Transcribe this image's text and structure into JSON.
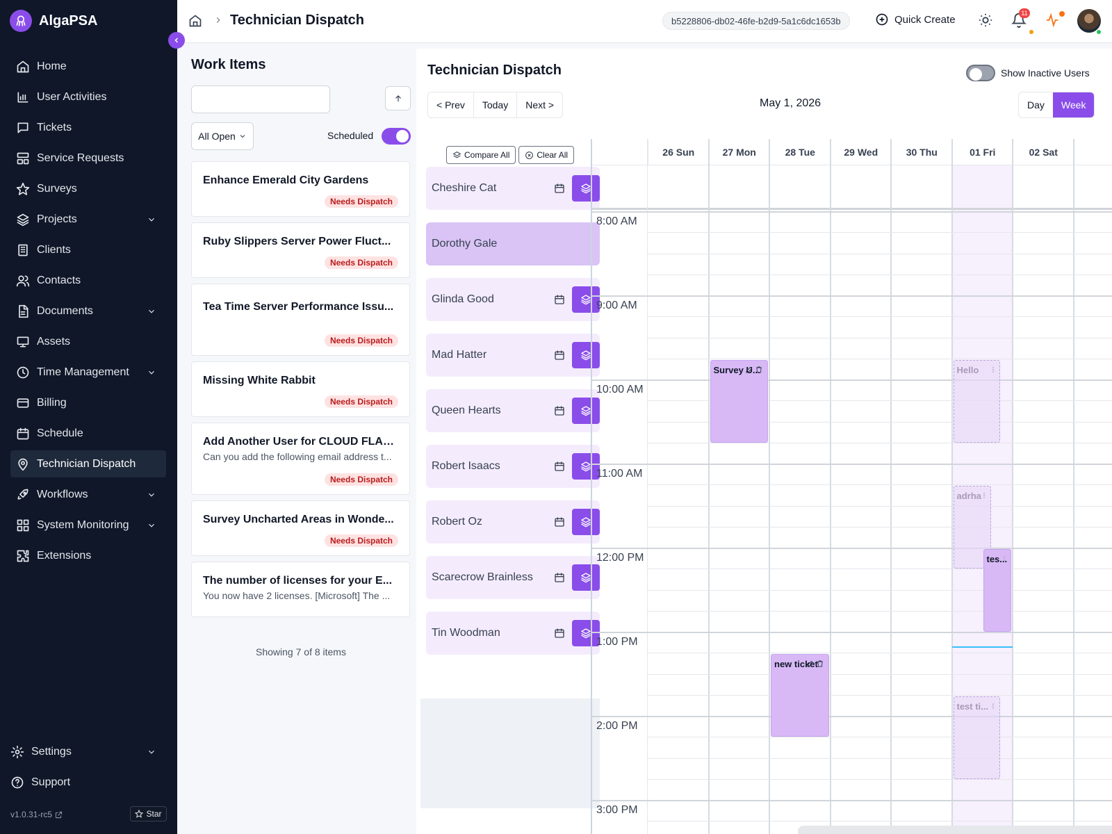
{
  "app": {
    "name": "AlgaPSA",
    "version": "v1.0.31-rc5",
    "star_label": "Star"
  },
  "sidebar": {
    "items": [
      {
        "label": "Home",
        "icon": "home-icon",
        "expandable": false,
        "active": false
      },
      {
        "label": "User Activities",
        "icon": "bar-chart-icon",
        "expandable": false,
        "active": false
      },
      {
        "label": "Tickets",
        "icon": "message-square-icon",
        "expandable": false,
        "active": false
      },
      {
        "label": "Service Requests",
        "icon": "layout-icon",
        "expandable": false,
        "active": false
      },
      {
        "label": "Surveys",
        "icon": "star-icon",
        "expandable": false,
        "active": false
      },
      {
        "label": "Projects",
        "icon": "layers-icon",
        "expandable": true,
        "active": false
      },
      {
        "label": "Clients",
        "icon": "building-icon",
        "expandable": false,
        "active": false
      },
      {
        "label": "Contacts",
        "icon": "users-icon",
        "expandable": false,
        "active": false
      },
      {
        "label": "Documents",
        "icon": "file-text-icon",
        "expandable": true,
        "active": false
      },
      {
        "label": "Assets",
        "icon": "monitor-icon",
        "expandable": false,
        "active": false
      },
      {
        "label": "Time Management",
        "icon": "clock-icon",
        "expandable": true,
        "active": false
      },
      {
        "label": "Billing",
        "icon": "credit-card-icon",
        "expandable": false,
        "active": false
      },
      {
        "label": "Schedule",
        "icon": "calendar-icon",
        "expandable": false,
        "active": false
      },
      {
        "label": "Technician Dispatch",
        "icon": "map-pin-icon",
        "expandable": false,
        "active": true
      },
      {
        "label": "Workflows",
        "icon": "rocket-icon",
        "expandable": true,
        "active": false
      },
      {
        "label": "System Monitoring",
        "icon": "grid-icon",
        "expandable": true,
        "active": false
      },
      {
        "label": "Extensions",
        "icon": "puzzle-icon",
        "expandable": false,
        "active": false
      }
    ],
    "bottom": [
      {
        "label": "Settings",
        "icon": "gear-icon",
        "expandable": true
      },
      {
        "label": "Support",
        "icon": "help-circle-icon",
        "expandable": false
      }
    ]
  },
  "header": {
    "title": "Technician Dispatch",
    "tenant_id": "b5228806-db02-46fe-b2d9-5a1c6dc1653b",
    "quick_create": "Quick Create",
    "notification_count": "11"
  },
  "work_items": {
    "title": "Work Items",
    "search_placeholder": "",
    "filter": "All Open",
    "scheduled_label": "Scheduled",
    "scheduled_on": true,
    "items": [
      {
        "title": "Enhance Emerald City Gardens",
        "description": "",
        "badge": "Needs Dispatch"
      },
      {
        "title": "Ruby Slippers Server Power Fluct...",
        "description": "",
        "badge": "Needs Dispatch"
      },
      {
        "title": "Tea Time Server Performance Issu...",
        "description": "",
        "badge": "Needs Dispatch"
      },
      {
        "title": "Missing White Rabbit",
        "description": "",
        "badge": "Needs Dispatch"
      },
      {
        "title": "Add Another User for CLOUD FLARE",
        "description": "Can you add the following email address t...",
        "badge": "Needs Dispatch"
      },
      {
        "title": "Survey Uncharted Areas in Wonde...",
        "description": "",
        "badge": "Needs Dispatch"
      },
      {
        "title": "The number of licenses for your E...",
        "description": "You now have 2 licenses. [Microsoft] The ...",
        "badge": ""
      }
    ],
    "footer": "Showing 7 of 8 items"
  },
  "dispatch": {
    "title": "Technician Dispatch",
    "show_inactive_label": "Show Inactive Users",
    "show_inactive_on": false,
    "nav": {
      "prev": "< Prev",
      "today": "Today",
      "next": "Next >"
    },
    "date": "May 1, 2026",
    "views": {
      "day": "Day",
      "week": "Week",
      "selected": "week"
    },
    "compare_all": "Compare All",
    "clear_all": "Clear All",
    "technicians": [
      {
        "name": "Cheshire Cat",
        "selected": false
      },
      {
        "name": "Dorothy Gale",
        "selected": true
      },
      {
        "name": "Glinda Good",
        "selected": false
      },
      {
        "name": "Mad Hatter",
        "selected": false
      },
      {
        "name": "Queen Hearts",
        "selected": false
      },
      {
        "name": "Robert Isaacs",
        "selected": false
      },
      {
        "name": "Robert Oz",
        "selected": false
      },
      {
        "name": "Scarecrow Brainless",
        "selected": false
      },
      {
        "name": "Tin Woodman",
        "selected": false
      }
    ],
    "days": [
      "26 Sun",
      "27 Mon",
      "28 Tue",
      "29 Wed",
      "30 Thu",
      "01 Fri",
      "02 Sat"
    ],
    "today_index": 5,
    "hours": [
      "8:00 AM",
      "9:00 AM",
      "10:00 AM",
      "11:00 AM",
      "12:00 PM",
      "1:00 PM",
      "2:00 PM",
      "3:00 PM"
    ],
    "events": [
      {
        "title": "Survey U...",
        "day": 1,
        "start": 9.75,
        "end": 10.75,
        "ghost": false,
        "icons": true
      },
      {
        "title": "Hello",
        "day": 5,
        "start": 9.75,
        "end": 10.75,
        "ghost": true,
        "icons": false
      },
      {
        "title": "adrha",
        "day": 5,
        "start": 11.25,
        "end": 12.25,
        "ghost": true,
        "icons": false
      },
      {
        "title": "tes...",
        "day": 5,
        "start": 12.0,
        "end": 13.0,
        "ghost": false,
        "icons": false
      },
      {
        "title": "new ticket",
        "day": 2,
        "start": 13.25,
        "end": 14.25,
        "ghost": false,
        "icons": true
      },
      {
        "title": "test ti...",
        "day": 5,
        "start": 13.75,
        "end": 14.75,
        "ghost": true,
        "icons": false
      }
    ],
    "now_hour": 13.17
  },
  "colors": {
    "accent": "#8a4dea",
    "sidebar_bg": "#0f1729",
    "badge_red": "#ef4444",
    "event_fill": "#d8b9f6"
  }
}
